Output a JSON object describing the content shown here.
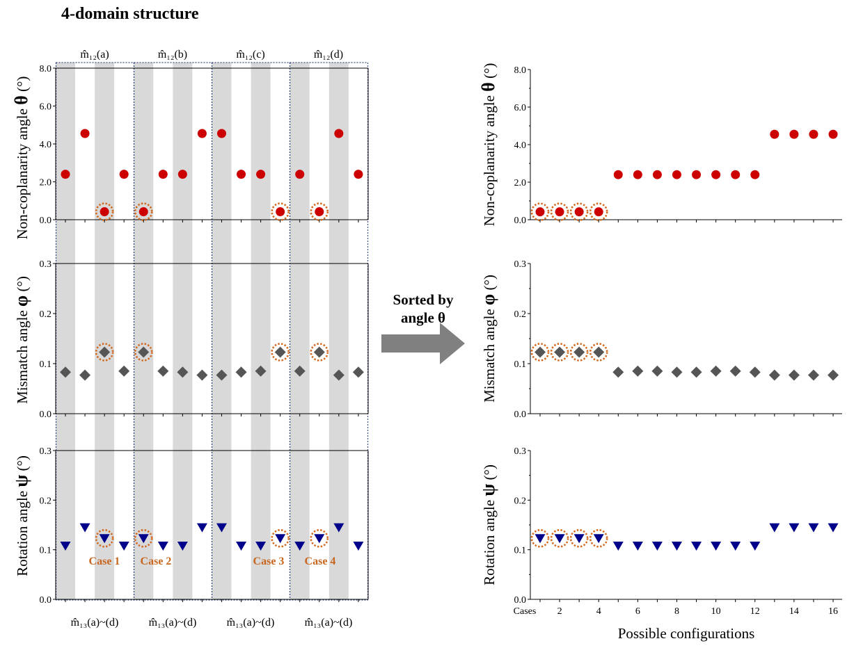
{
  "title": "4-domain structure",
  "arrow_label": [
    "Sorted by",
    "angle θ"
  ],
  "left": {
    "top_groups": [
      "m̂₁₂(a)",
      "m̂₁₂(b)",
      "m̂₁₂(c)",
      "m̂₁₂(d)"
    ],
    "bottom_groups": [
      "m̂₁₃(a)~(d)",
      "m̂₁₃(a)~(d)",
      "m̂₁₃(a)~(d)",
      "m̂₁₃(a)~(d)"
    ],
    "case_labels": [
      "Case 1",
      "Case 2",
      "Case 3",
      "Case 4"
    ],
    "case_indices": [
      3,
      5,
      12,
      14
    ]
  },
  "right": {
    "xlabel": "Possible configurations",
    "x_first_label": "Cases",
    "x_ticks": [
      2,
      4,
      6,
      8,
      10,
      12,
      14,
      16
    ]
  },
  "panels": [
    {
      "key": "theta",
      "ylabel_text": "Non-coplanarity angle ",
      "ylabel_symbol": "θ",
      "ylabel_unit": " (°)",
      "ylim": [
        0,
        8
      ],
      "yticks": [
        "0.0",
        "2.0",
        "4.0",
        "6.0",
        "8.0"
      ]
    },
    {
      "key": "phi",
      "ylabel_text": "Mismatch angle ",
      "ylabel_symbol": "φ",
      "ylabel_unit": " (°)",
      "ylim": [
        0,
        0.3
      ],
      "yticks": [
        "0.0",
        "0.1",
        "0.2",
        "0.3"
      ]
    },
    {
      "key": "psi",
      "ylabel_text": "Rotation angle ",
      "ylabel_symbol": "ψ",
      "ylabel_unit": " (°)",
      "ylim": [
        0,
        0.3
      ],
      "yticks": [
        "0.0",
        "0.1",
        "0.2",
        "0.3"
      ]
    }
  ],
  "colors": {
    "theta": "#cc0000",
    "phi": "#555555",
    "psi": "#00008b",
    "highlight": "#d2691e",
    "band": "#d9d9d9",
    "arrow": "#808080"
  },
  "chart_data": [
    {
      "type": "scatter",
      "name": "left",
      "x": [
        1,
        2,
        3,
        4,
        5,
        6,
        7,
        8,
        9,
        10,
        11,
        12,
        13,
        14,
        15,
        16
      ],
      "series": [
        {
          "key": "theta",
          "values": [
            2.4,
            4.55,
            0.42,
            2.4,
            0.42,
            2.4,
            2.4,
            4.55,
            4.55,
            2.4,
            2.4,
            0.42,
            2.4,
            0.42,
            4.55,
            2.4
          ]
        },
        {
          "key": "phi",
          "values": [
            0.083,
            0.077,
            0.123,
            0.085,
            0.123,
            0.085,
            0.083,
            0.077,
            0.077,
            0.083,
            0.085,
            0.123,
            0.085,
            0.123,
            0.077,
            0.083
          ]
        },
        {
          "key": "psi",
          "values": [
            0.108,
            0.145,
            0.123,
            0.108,
            0.123,
            0.108,
            0.108,
            0.145,
            0.145,
            0.108,
            0.108,
            0.123,
            0.108,
            0.123,
            0.145,
            0.108
          ]
        }
      ]
    },
    {
      "type": "scatter",
      "name": "right",
      "x": [
        1,
        2,
        3,
        4,
        5,
        6,
        7,
        8,
        9,
        10,
        11,
        12,
        13,
        14,
        15,
        16
      ],
      "series": [
        {
          "key": "theta",
          "values": [
            0.42,
            0.42,
            0.42,
            0.42,
            2.4,
            2.4,
            2.4,
            2.4,
            2.4,
            2.4,
            2.4,
            2.4,
            4.55,
            4.55,
            4.55,
            4.55
          ]
        },
        {
          "key": "phi",
          "values": [
            0.123,
            0.123,
            0.123,
            0.123,
            0.083,
            0.085,
            0.085,
            0.083,
            0.083,
            0.085,
            0.085,
            0.083,
            0.077,
            0.077,
            0.077,
            0.077
          ]
        },
        {
          "key": "psi",
          "values": [
            0.123,
            0.123,
            0.123,
            0.123,
            0.108,
            0.108,
            0.108,
            0.108,
            0.108,
            0.108,
            0.108,
            0.108,
            0.145,
            0.145,
            0.145,
            0.145
          ]
        }
      ]
    }
  ]
}
